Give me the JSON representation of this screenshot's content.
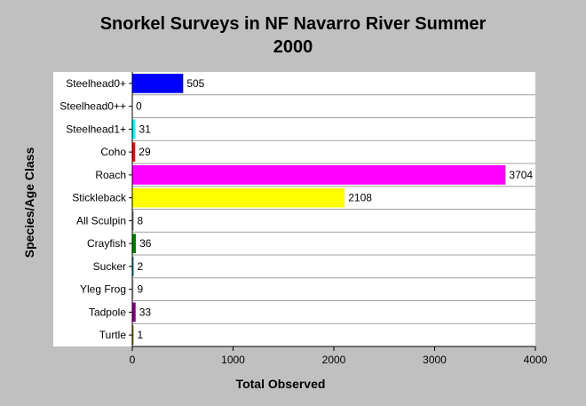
{
  "chart_data": {
    "type": "bar",
    "orientation": "horizontal",
    "title_lines": [
      "Snorkel Surveys in NF Navarro River Summer",
      "2000"
    ],
    "xlabel": "Total Observed",
    "ylabel": "Species/Age Class",
    "xlim": [
      0,
      4000
    ],
    "xticks": [
      0,
      1000,
      2000,
      3000,
      4000
    ],
    "grid": "horizontal",
    "legend": "none",
    "categories": [
      "Steelhead0+",
      "Steelhead0++",
      "Steelhead1+",
      "Coho",
      "Roach",
      "Stickleback",
      "All Sculpin",
      "Crayfish",
      "Sucker",
      "Yleg Frog",
      "Tadpole",
      "Turtle"
    ],
    "values": [
      505,
      0,
      31,
      29,
      3704,
      2108,
      8,
      36,
      2,
      9,
      33,
      1
    ],
    "colors": [
      "#0000ff",
      "#000080",
      "#00ffff",
      "#ff0000",
      "#ff00ff",
      "#ffff00",
      "#808080",
      "#008000",
      "#008080",
      "#c0c0c0",
      "#800080",
      "#808000"
    ]
  }
}
